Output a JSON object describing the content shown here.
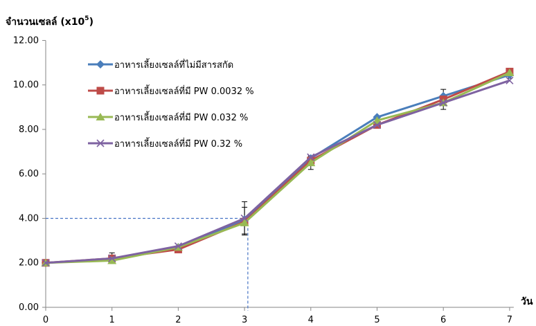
{
  "chart_data": {
    "type": "line",
    "title": "",
    "ylabel": "จำนวนเซลล์ (x10",
    "ylabel_superscript": "5",
    "ylabel_suffix": ")",
    "xlabel": "วัน",
    "x": [
      0,
      1,
      2,
      3,
      4,
      5,
      6,
      7
    ],
    "ylim": [
      0,
      12
    ],
    "yticks": [
      "0.00",
      "2.00",
      "4.00",
      "6.00",
      "8.00",
      "10.00",
      "12.00"
    ],
    "xticks": [
      "0",
      "1",
      "2",
      "3",
      "4",
      "5",
      "6",
      "7"
    ],
    "grid": false,
    "legend_position": "top-left",
    "reference_point": {
      "x": 3.05,
      "y": 4.0
    },
    "series": [
      {
        "name": "อาหารเลี้ยงเซลล์ที่ไม่มีสารสกัด",
        "color": "#4a7ebb",
        "marker": "diamond",
        "values": [
          2.0,
          2.15,
          2.7,
          3.95,
          6.7,
          8.55,
          9.5,
          10.45
        ]
      },
      {
        "name": "อาหารเลี้ยงเซลล์ที่มี  PW 0.0032 %",
        "color": "#be4b48",
        "marker": "square",
        "values": [
          2.0,
          2.2,
          2.6,
          3.85,
          6.6,
          8.2,
          9.35,
          10.6
        ]
      },
      {
        "name": "อาหารเลี้ยงเซลล์ที่มี  PW 0.032 %",
        "color": "#98b954",
        "marker": "triangle",
        "values": [
          2.0,
          2.1,
          2.7,
          3.8,
          6.5,
          8.4,
          9.2,
          10.55
        ]
      },
      {
        "name": "อาหารเลี้ยงเซลล์ที่มี  PW 0.32 %",
        "color": "#7e62a1",
        "marker": "x",
        "values": [
          2.0,
          2.2,
          2.75,
          4.0,
          6.75,
          8.2,
          9.2,
          10.2
        ]
      }
    ],
    "error_bars": [
      {
        "x": 1,
        "low": 2.0,
        "high": 2.45
      },
      {
        "x": 3,
        "low": 3.3,
        "high": 4.75
      },
      {
        "x": 3,
        "low": 3.25,
        "high": 4.5
      },
      {
        "x": 4,
        "low": 6.2,
        "high": 6.8
      },
      {
        "x": 5,
        "low": 8.1,
        "high": 8.6
      },
      {
        "x": 6,
        "low": 8.9,
        "high": 9.8
      },
      {
        "x": 7,
        "low": 10.3,
        "high": 10.7
      }
    ]
  }
}
